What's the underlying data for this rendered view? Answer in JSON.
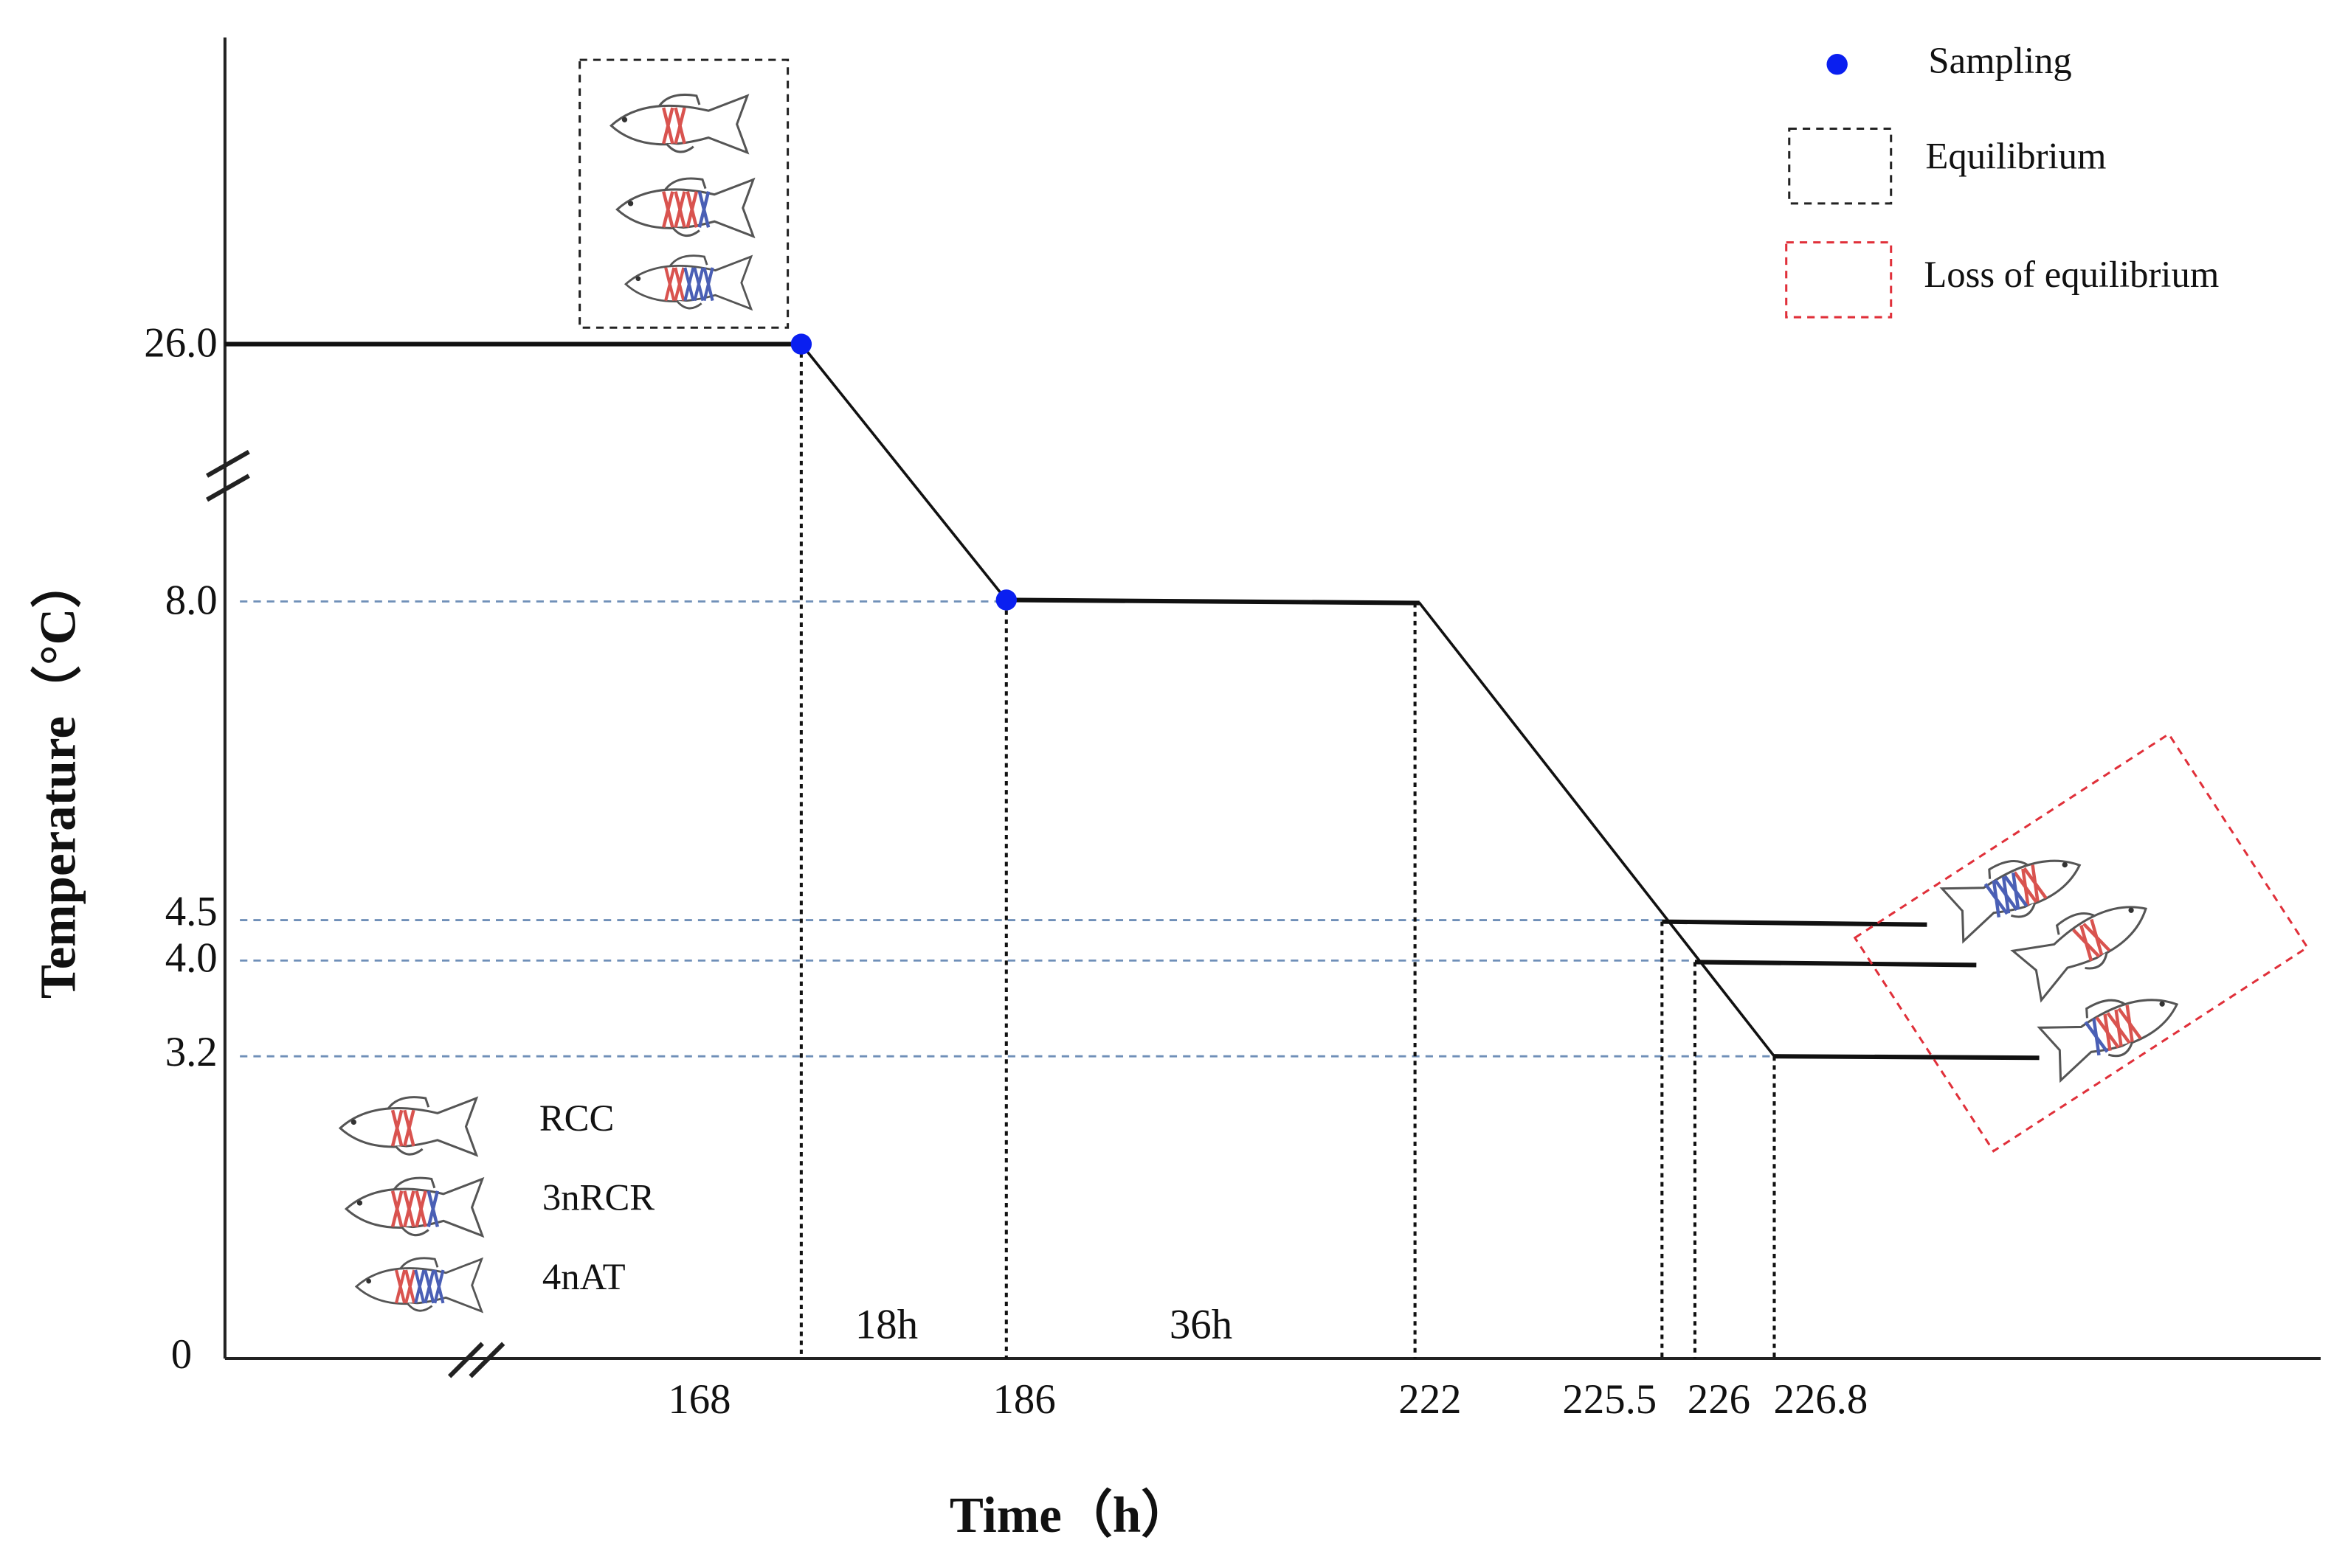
{
  "axes": {
    "y_title": "Temperature（°C）",
    "x_title": "Time（h）",
    "y_ticks": [
      "26.0",
      "8.0",
      "4.5",
      "4.0",
      "3.2",
      "0"
    ],
    "x_ticks": [
      "168",
      "186",
      "222",
      "225.5",
      "226",
      "226.8"
    ]
  },
  "intervals": [
    "18h",
    "36h"
  ],
  "legend": [
    "Sampling",
    "Equilibrium",
    "Loss of equilibrium"
  ],
  "fish_key": [
    "RCC",
    "3nRCR",
    "4nAT"
  ]
}
